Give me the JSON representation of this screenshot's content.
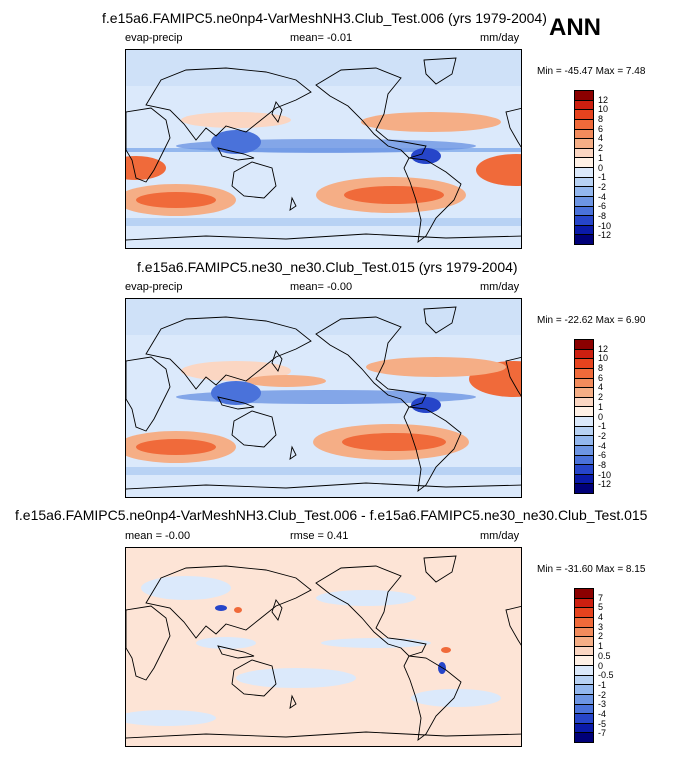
{
  "season": "ANN",
  "panels": [
    {
      "title": "f.e15a6.FAMIPC5.ne0np4-VarMeshNH3.Club_Test.006 (yrs 1979-2004)",
      "left_label": "evap-precip",
      "center_label": "mean=  -0.01",
      "right_label": "mm/day",
      "minmax": "Min = -45.47 Max =  7.48",
      "colorbar": {
        "labels": [
          "12",
          "10",
          "8",
          "6",
          "4",
          "2",
          "1",
          "0",
          "-1",
          "-2",
          "-4",
          "-6",
          "-8",
          "-10",
          "-12"
        ],
        "colors": [
          "#8b0000",
          "#cc1f10",
          "#e6431e",
          "#f06a3a",
          "#f28b5c",
          "#f5ae86",
          "#fbd6c2",
          "#fff1e6",
          "#dbe9fb",
          "#b8d2f4",
          "#93b7ee",
          "#6d95e3",
          "#4a72da",
          "#2645c9",
          "#0a1aa8",
          "#000078"
        ]
      }
    },
    {
      "title": "f.e15a6.FAMIPC5.ne30_ne30.Club_Test.015 (yrs 1979-2004)",
      "left_label": "evap-precip",
      "center_label": "mean=  -0.00",
      "right_label": "mm/day",
      "minmax": "Min = -22.62 Max =  6.90",
      "colorbar": {
        "labels": [
          "12",
          "10",
          "8",
          "6",
          "4",
          "2",
          "1",
          "0",
          "-1",
          "-2",
          "-4",
          "-6",
          "-8",
          "-10",
          "-12"
        ],
        "colors": [
          "#8b0000",
          "#cc1f10",
          "#e6431e",
          "#f06a3a",
          "#f28b5c",
          "#f5ae86",
          "#fbd6c2",
          "#fff1e6",
          "#dbe9fb",
          "#b8d2f4",
          "#93b7ee",
          "#6d95e3",
          "#4a72da",
          "#2645c9",
          "#0a1aa8",
          "#000078"
        ]
      }
    },
    {
      "title": "f.e15a6.FAMIPC5.ne0np4-VarMeshNH3.Club_Test.006 - f.e15a6.FAMIPC5.ne30_ne30.Club_Test.015",
      "left_label": "mean = -0.00",
      "center_label": "rmse =  0.41",
      "right_label": "mm/day",
      "minmax": "Min = -31.60 Max =  8.15",
      "colorbar": {
        "labels": [
          "7",
          "5",
          "4",
          "3",
          "2",
          "1",
          "0.5",
          "0",
          "-0.5",
          "-1",
          "-2",
          "-3",
          "-4",
          "-5",
          "-7"
        ],
        "colors": [
          "#8b0000",
          "#cc1f10",
          "#e6431e",
          "#f06a3a",
          "#f28b5c",
          "#f5ae86",
          "#fbd6c2",
          "#fff1e6",
          "#dbe9fb",
          "#b8d2f4",
          "#93b7ee",
          "#6d95e3",
          "#4a72da",
          "#2645c9",
          "#0a1aa8",
          "#000078"
        ]
      }
    }
  ]
}
